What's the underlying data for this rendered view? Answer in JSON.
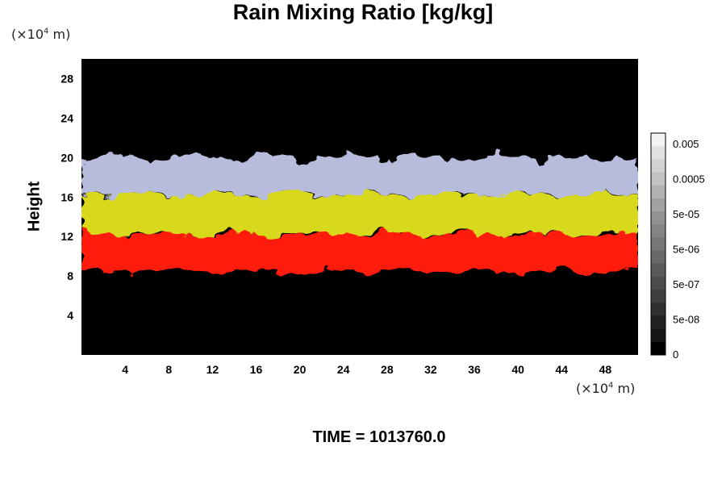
{
  "chart_data": {
    "type": "heatmap",
    "title": "Rain Mixing Ratio [kg/kg]",
    "xlabel": "",
    "ylabel": "Height",
    "x_unit": {
      "prefix": "(×10",
      "exp": "4",
      "suffix": " m)"
    },
    "y_unit": {
      "prefix": "(×10",
      "exp": "4",
      "suffix": " m)"
    },
    "xlim": [
      0,
      51
    ],
    "ylim": [
      0,
      30
    ],
    "xticks": [
      4,
      8,
      12,
      16,
      20,
      24,
      28,
      32,
      36,
      40,
      44,
      48
    ],
    "yticks": [
      4,
      8,
      12,
      16,
      20,
      24,
      28
    ],
    "background_color": "#000000",
    "layers": [
      {
        "name": "red",
        "color": "#ff1a10",
        "y_range": [
          8.5,
          12.3
        ]
      },
      {
        "name": "yellow",
        "color": "#d8d81a",
        "y_range": [
          12.3,
          16.3
        ]
      },
      {
        "name": "lavender",
        "color": "#b8bcdc",
        "y_range": [
          16.3,
          20.0
        ]
      }
    ],
    "colorbar": {
      "labels": [
        "0.005",
        "0.0005",
        "5e-05",
        "5e-06",
        "5e-07",
        "5e-08",
        "0"
      ],
      "colors": [
        "#f2f2f2",
        "#e2e2e2",
        "#d2d2d2",
        "#c2c2c2",
        "#b2b2b2",
        "#a2a2a2",
        "#929292",
        "#848484",
        "#767676",
        "#686868",
        "#5a5a5a",
        "#4c4c4c",
        "#3e3e3e",
        "#303030",
        "#222222",
        "#161616",
        "#000000"
      ]
    },
    "time_label": "TIME = 1013760.0"
  }
}
